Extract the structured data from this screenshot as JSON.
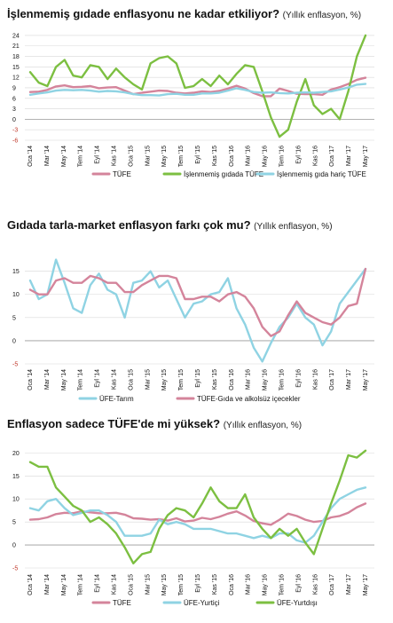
{
  "chart_data": [
    {
      "type": "line",
      "title": "İşlenmemiş gıdade enflasyonu ne kadar etkiliyor?",
      "subtitle": "(Yıllık enflasyon, %)",
      "y_ticks": [
        -6,
        -3,
        0,
        3,
        6,
        9,
        12,
        15,
        18,
        21,
        24
      ],
      "ylim": [
        -6,
        25
      ],
      "x_tick_labels": [
        "Oca '14",
        "Mar '14",
        "May '14",
        "Tem '14",
        "Eyl '14",
        "Kas '14",
        "Oca '15",
        "Mar '15",
        "May '15",
        "Tem '15",
        "Eyl '15",
        "Kas '15",
        "Oca '16",
        "Mar '16",
        "May '16",
        "Tem '16",
        "Eyl '16",
        "Kas '16",
        "Oca '17",
        "Mar '17",
        "May '17"
      ],
      "legend_position": "bottom",
      "series": [
        {
          "name": "TÜFE",
          "color": "#d4849b",
          "values": [
            7.8,
            7.9,
            8.4,
            9.4,
            9.7,
            9.2,
            9.3,
            9.5,
            8.9,
            9.1,
            9.2,
            8.2,
            7.2,
            7.6,
            7.9,
            8.2,
            8.1,
            7.6,
            7.4,
            7.6,
            8.0,
            7.8,
            8.1,
            8.8,
            9.6,
            8.8,
            7.5,
            6.6,
            6.6,
            8.8,
            8.1,
            7.3,
            7.2,
            7.2,
            7.0,
            8.5,
            9.2,
            10.1,
            11.3,
            11.9
          ]
        },
        {
          "name": "İşlenmemiş gıdada TÜFE",
          "color": "#7cbf41",
          "values": [
            13.5,
            10.5,
            9.5,
            15.0,
            17.0,
            12.5,
            12.0,
            15.5,
            15.0,
            11.5,
            14.5,
            12.0,
            10.0,
            8.5,
            16.0,
            17.5,
            18.0,
            16.0,
            9.0,
            9.5,
            11.5,
            9.5,
            12.5,
            10.0,
            13.0,
            15.5,
            15.0,
            8.0,
            0.5,
            -5.0,
            -3.0,
            5.0,
            11.5,
            4.0,
            1.5,
            3.0,
            0.0,
            8.0,
            18.0,
            24.0
          ]
        },
        {
          "name": "İşlenmemiş gıda hariç TÜFE",
          "color": "#8fd3e3",
          "values": [
            7.0,
            7.4,
            7.7,
            8.2,
            8.4,
            8.3,
            8.4,
            8.2,
            7.9,
            8.1,
            8.0,
            7.7,
            7.2,
            6.9,
            6.9,
            6.8,
            7.2,
            7.3,
            7.0,
            7.0,
            7.4,
            7.4,
            7.6,
            8.2,
            8.9,
            8.4,
            7.8,
            7.6,
            7.7,
            7.5,
            7.4,
            7.6,
            7.7,
            7.6,
            7.8,
            8.0,
            8.5,
            9.1,
            9.9,
            10.1
          ]
        }
      ]
    },
    {
      "type": "line",
      "title": "Gıdada tarla-market enflasyon farkı çok mu?",
      "subtitle": "(Yıllık enflasyon, %)",
      "y_ticks": [
        -5,
        0,
        5,
        10,
        15
      ],
      "ylim": [
        -5,
        18
      ],
      "x_tick_labels": [
        "Oca '14",
        "Mar '14",
        "May '14",
        "Tem '14",
        "Eyl '14",
        "Kas '14",
        "Oca '15",
        "Mar '15",
        "May '15",
        "Tem '15",
        "Eyl '15",
        "Kas '15",
        "Oca '16",
        "Mar '16",
        "May '16",
        "Tem '16",
        "Eyl '16",
        "Kas '16",
        "Oca '17",
        "Mar '17",
        "May '17"
      ],
      "legend_position": "bottom",
      "series": [
        {
          "name": "ÜFE-Tarım",
          "color": "#8fd3e3",
          "values": [
            13.0,
            9.0,
            10.0,
            17.5,
            12.5,
            7.0,
            6.0,
            12.0,
            14.5,
            11.0,
            10.0,
            5.0,
            12.5,
            13.0,
            15.0,
            11.5,
            13.0,
            9.0,
            5.0,
            8.0,
            8.5,
            10.0,
            10.5,
            13.5,
            7.0,
            3.5,
            -1.5,
            -4.5,
            -0.5,
            3.0,
            5.0,
            8.0,
            5.0,
            3.5,
            -1.0,
            2.0,
            8.0,
            10.5,
            13.0,
            15.5
          ]
        },
        {
          "name": "TÜFE-Gıda ve alkolsüz içecekler",
          "color": "#d4849b",
          "values": [
            11.0,
            10.0,
            10.0,
            13.0,
            13.5,
            12.5,
            12.5,
            14.0,
            13.5,
            12.5,
            12.5,
            10.5,
            10.5,
            12.0,
            13.0,
            14.0,
            14.0,
            13.5,
            9.0,
            9.0,
            9.5,
            9.5,
            8.5,
            10.0,
            10.5,
            9.5,
            7.0,
            3.0,
            1.0,
            2.0,
            5.5,
            8.5,
            6.0,
            5.0,
            4.0,
            3.5,
            5.0,
            7.5,
            8.0,
            15.5
          ]
        }
      ]
    },
    {
      "type": "line",
      "title": "Enflasyon sadece TÜFE'de mi yüksek?",
      "subtitle": "(Yıllık enflasyon, %)",
      "y_ticks": [
        -5,
        0,
        5,
        10,
        15,
        20
      ],
      "ylim": [
        -5,
        22
      ],
      "x_tick_labels": [
        "Oca '14",
        "Mar '14",
        "May '14",
        "Tem '14",
        "Eyl '14",
        "Kas '14",
        "Oca '15",
        "Mar '15",
        "May '15",
        "Tem '15",
        "Eyl '15",
        "Kas '15",
        "Oca '16",
        "Mar '16",
        "May '16",
        "Tem '16",
        "Eyl '16",
        "Kas '16",
        "Oca '17",
        "Mar '17",
        "May '17"
      ],
      "legend_position": "bottom",
      "series": [
        {
          "name": "TÜFE",
          "color": "#d4849b",
          "values": [
            5.5,
            5.6,
            6.0,
            6.7,
            7.0,
            6.9,
            7.3,
            7.1,
            6.9,
            6.9,
            7.0,
            6.6,
            5.8,
            5.7,
            5.5,
            5.6,
            5.3,
            5.8,
            5.1,
            5.3,
            5.9,
            5.6,
            6.1,
            6.8,
            7.3,
            6.4,
            5.2,
            4.7,
            4.4,
            5.5,
            6.8,
            6.3,
            5.5,
            5.0,
            5.2,
            6.0,
            6.3,
            7.0,
            8.2,
            9.0
          ]
        },
        {
          "name": "ÜFE-Yurtiçi",
          "color": "#8fd3e3",
          "values": [
            8.0,
            7.5,
            9.5,
            10.0,
            8.0,
            6.5,
            7.0,
            7.5,
            7.5,
            6.5,
            5.0,
            2.0,
            2.0,
            2.0,
            2.5,
            5.5,
            4.5,
            5.0,
            4.5,
            3.5,
            3.5,
            3.5,
            3.0,
            2.5,
            2.5,
            2.0,
            1.5,
            2.0,
            1.5,
            2.5,
            2.5,
            1.0,
            0.5,
            2.0,
            5.0,
            8.0,
            10.0,
            11.0,
            12.0,
            12.5
          ]
        },
        {
          "name": "ÜFE-Yurtdışı",
          "color": "#7cbf41",
          "values": [
            18.0,
            17.0,
            17.0,
            12.5,
            10.5,
            8.5,
            7.5,
            5.0,
            6.0,
            4.5,
            2.5,
            -0.5,
            -4.0,
            -2.0,
            -1.5,
            3.5,
            6.5,
            8.0,
            7.5,
            6.0,
            9.0,
            12.5,
            9.5,
            8.0,
            8.0,
            11.0,
            6.0,
            3.5,
            1.5,
            3.5,
            2.0,
            3.5,
            0.5,
            -2.0,
            3.5,
            9.0,
            14.0,
            19.5,
            19.0,
            20.5
          ]
        }
      ]
    }
  ]
}
